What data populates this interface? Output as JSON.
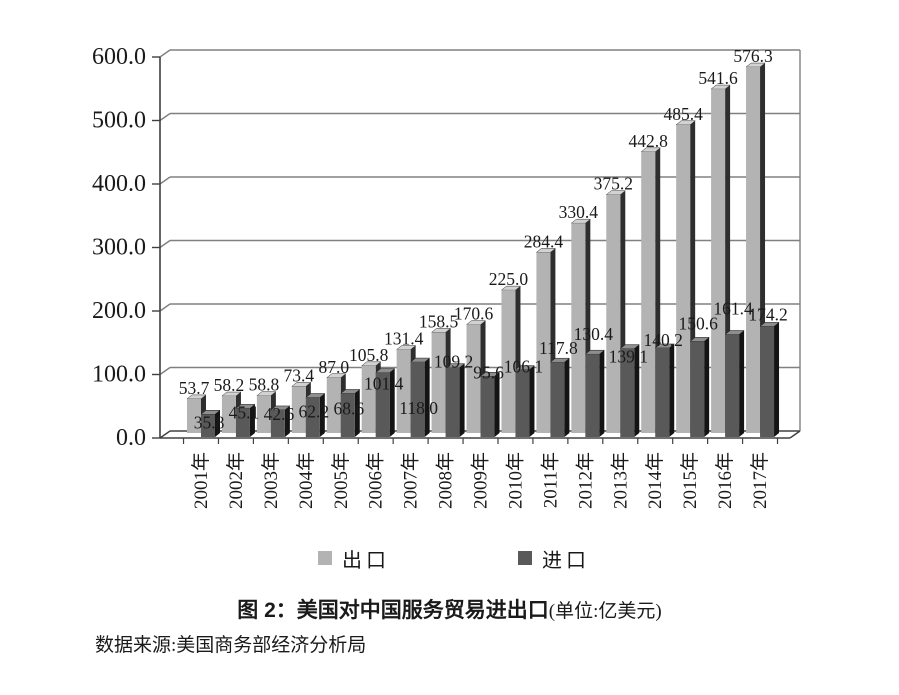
{
  "figure": {
    "title_main": "图 2：美国对中国服务贸易进出口",
    "title_unit": "(单位:亿美元)",
    "source": "数据来源:美国商务部经济分析局"
  },
  "legend": {
    "export_label": "出口",
    "import_label": "进口"
  },
  "colors": {
    "background": "#ffffff",
    "export_front": "#b3b3b3",
    "export_top": "#d2d2d2",
    "export_side": "#2e2e2e",
    "import_front": "#595959",
    "import_top": "#8e8e8e",
    "import_side": "#141414",
    "gridline": "#808080",
    "axis": "#404040",
    "text": "#1a1a1a"
  },
  "chart_data": {
    "type": "bar",
    "style": "3d-clustered-column-grayscale",
    "title": "图 2：美国对中国服务贸易进出口(单位:亿美元)",
    "xlabel": "",
    "ylabel": "",
    "ylim": [
      0,
      600
    ],
    "ytick_step": 100,
    "ytick_labels": [
      "0.0",
      "100.0",
      "200.0",
      "300.0",
      "400.0",
      "500.0",
      "600.0"
    ],
    "grid": true,
    "value_labels": true,
    "legend_position": "bottom",
    "categories": [
      "2001年",
      "2002年",
      "2003年",
      "2004年",
      "2005年",
      "2006年",
      "2007年",
      "2008年",
      "2009年",
      "2010年",
      "2011年",
      "2012年",
      "2013年",
      "2014年",
      "2015年",
      "2016年",
      "2017年"
    ],
    "series": [
      {
        "name": "出口",
        "values": [
          53.7,
          58.2,
          58.8,
          73.4,
          87.0,
          105.8,
          131.4,
          158.5,
          170.6,
          225.0,
          284.4,
          330.4,
          375.2,
          442.8,
          485.4,
          541.6,
          576.3
        ]
      },
      {
        "name": "进口",
        "values": [
          35.8,
          45.1,
          42.6,
          62.2,
          68.6,
          101.4,
          118.0,
          109.2,
          95.6,
          106.1,
          117.8,
          130.4,
          139.1,
          140.2,
          150.6,
          161.4,
          174.2
        ]
      }
    ]
  }
}
